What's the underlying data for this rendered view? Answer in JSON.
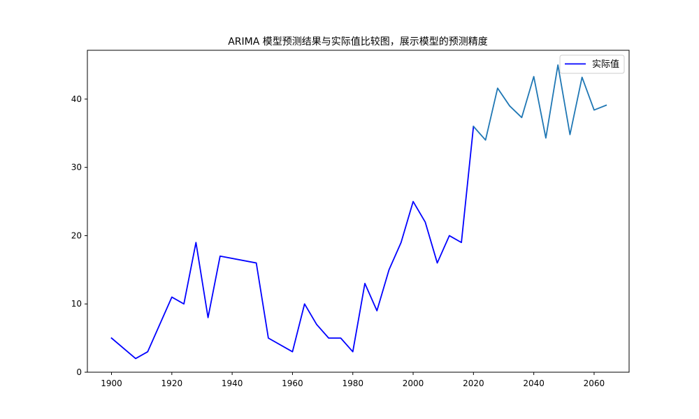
{
  "chart_data": {
    "type": "line",
    "title": "ARIMA 模型预测结果与实际值比较图，展示模型的预测精度",
    "xlabel": "",
    "ylabel": "",
    "xlim": [
      1892,
      2071.6
    ],
    "ylim": [
      0,
      47.15
    ],
    "x_ticks": [
      1900,
      1920,
      1940,
      1960,
      1980,
      2000,
      2020,
      2040,
      2060
    ],
    "y_ticks": [
      0,
      10,
      20,
      30,
      40
    ],
    "grid": false,
    "legend": {
      "position": "top-right"
    },
    "series": [
      {
        "name": "实际值",
        "color": "#0000ff",
        "x": [
          1900,
          1908,
          1912,
          1920,
          1924,
          1928,
          1932,
          1936,
          1948,
          1952,
          1960,
          1964,
          1968,
          1972,
          1976,
          1980,
          1984,
          1988,
          1992,
          1996,
          2000,
          2004,
          2008,
          2012,
          2016,
          2020
        ],
        "y": [
          5,
          2,
          3,
          11,
          10,
          19,
          8,
          17,
          16,
          5,
          3,
          10,
          7,
          5,
          5,
          3,
          13,
          9,
          15,
          19,
          25,
          22,
          16,
          20,
          19,
          36
        ]
      },
      {
        "color": "#1f77b4",
        "x": [
          2020,
          2024,
          2028,
          2032,
          2036,
          2040,
          2044,
          2048,
          2052,
          2056,
          2060,
          2064
        ],
        "y": [
          36,
          34,
          41.6,
          39,
          37.3,
          43.3,
          34.3,
          45,
          34.8,
          43.2,
          38.4,
          39.1
        ]
      }
    ]
  }
}
